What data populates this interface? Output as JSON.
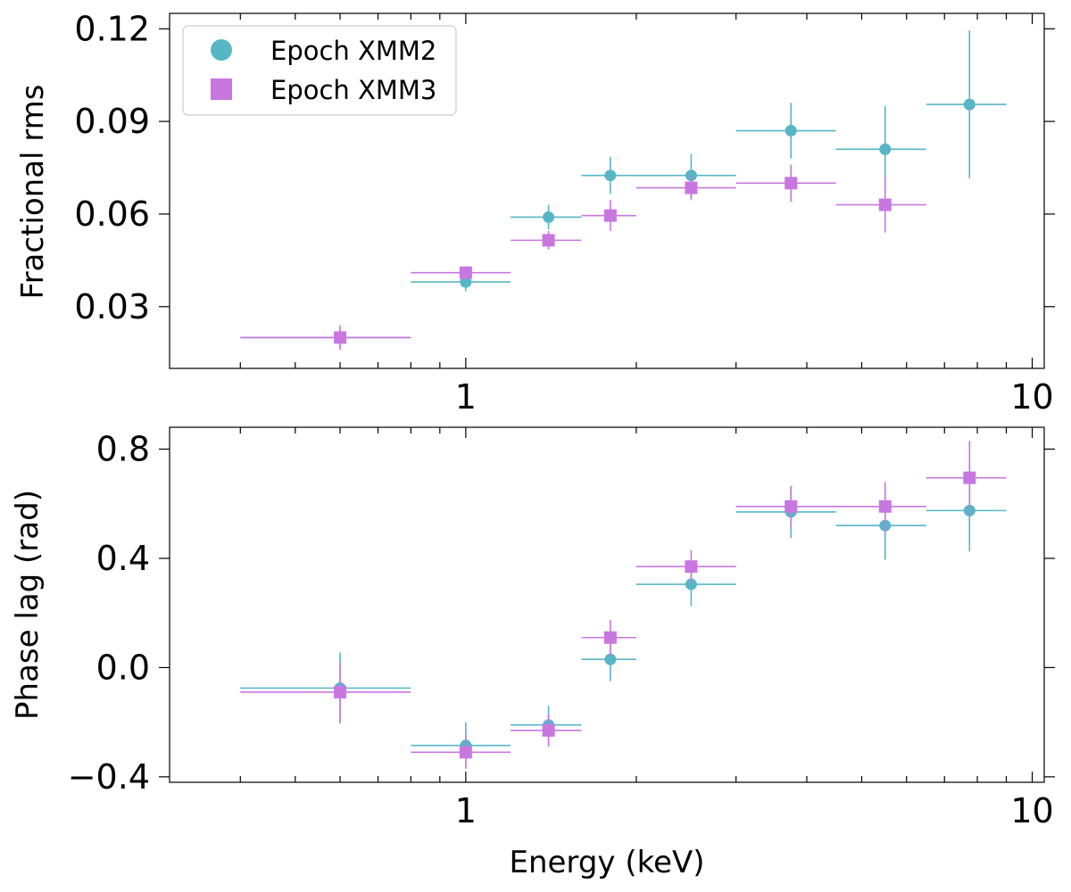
{
  "colors": {
    "xmm2": "#56b6c6",
    "xmm3": "#c877e0"
  },
  "chart_data": [
    {
      "type": "scatter",
      "panel": "top",
      "xlabel": "Energy (keV)",
      "ylabel": "Fractional rms",
      "xscale": "log",
      "xlim": [
        0.3,
        10.5
      ],
      "ylim": [
        0.01,
        0.125
      ],
      "yticks": [
        0.03,
        0.06,
        0.09,
        0.12
      ],
      "ytick_labels": [
        "0.03",
        "0.06",
        "0.09",
        "0.12"
      ],
      "xticks": [
        1,
        10
      ],
      "xtick_labels": [
        "1",
        "10"
      ],
      "legend": {
        "position": "top-left",
        "entries": [
          "Epoch XMM2",
          "Epoch XMM3"
        ]
      },
      "series": [
        {
          "name": "Epoch XMM2",
          "marker": "circle",
          "points": [
            {
              "x": 0.6,
              "xlo": 0.4,
              "xhi": 0.8,
              "y": 0.02,
              "yerr": 0.003
            },
            {
              "x": 1.0,
              "xlo": 0.8,
              "xhi": 1.2,
              "y": 0.038,
              "yerr": 0.003
            },
            {
              "x": 1.4,
              "xlo": 1.2,
              "xhi": 1.6,
              "y": 0.059,
              "yerr": 0.004
            },
            {
              "x": 1.8,
              "xlo": 1.6,
              "xhi": 2.0,
              "y": 0.0725,
              "yerr": 0.006
            },
            {
              "x": 2.5,
              "xlo": 2.0,
              "xhi": 3.0,
              "y": 0.0725,
              "yerr": 0.007
            },
            {
              "x": 3.75,
              "xlo": 3.0,
              "xhi": 4.5,
              "y": 0.087,
              "yerr": 0.009
            },
            {
              "x": 5.5,
              "xlo": 4.5,
              "xhi": 6.5,
              "y": 0.081,
              "yerr": 0.014
            },
            {
              "x": 7.75,
              "xlo": 6.5,
              "xhi": 9.0,
              "y": 0.0955,
              "yerr": 0.024
            }
          ]
        },
        {
          "name": "Epoch XMM3",
          "marker": "square",
          "points": [
            {
              "x": 0.6,
              "xlo": 0.4,
              "xhi": 0.8,
              "y": 0.02,
              "yerr": 0.004
            },
            {
              "x": 1.0,
              "xlo": 0.8,
              "xhi": 1.2,
              "y": 0.041,
              "yerr": 0.002
            },
            {
              "x": 1.4,
              "xlo": 1.2,
              "xhi": 1.6,
              "y": 0.0515,
              "yerr": 0.003
            },
            {
              "x": 1.8,
              "xlo": 1.6,
              "xhi": 2.0,
              "y": 0.0595,
              "yerr": 0.005
            },
            {
              "x": 2.5,
              "xlo": 2.0,
              "xhi": 3.0,
              "y": 0.0685,
              "yerr": 0.004
            },
            {
              "x": 3.75,
              "xlo": 3.0,
              "xhi": 4.5,
              "y": 0.07,
              "yerr": 0.006
            },
            {
              "x": 5.5,
              "xlo": 4.5,
              "xhi": 6.5,
              "y": 0.063,
              "yerr": 0.009
            }
          ]
        }
      ]
    },
    {
      "type": "scatter",
      "panel": "bottom",
      "xlabel": "Energy (keV)",
      "ylabel": "Phase lag (rad)",
      "xscale": "log",
      "xlim": [
        0.3,
        10.5
      ],
      "ylim": [
        -0.42,
        0.88
      ],
      "yticks": [
        -0.4,
        0.0,
        0.4,
        0.8
      ],
      "ytick_labels": [
        "−0.4",
        "0.0",
        "0.4",
        "0.8"
      ],
      "xticks": [
        1,
        10
      ],
      "xtick_labels": [
        "1",
        "10"
      ],
      "series": [
        {
          "name": "Epoch XMM2",
          "marker": "circle",
          "points": [
            {
              "x": 0.6,
              "xlo": 0.4,
              "xhi": 0.8,
              "y": -0.075,
              "yerr": 0.13
            },
            {
              "x": 1.0,
              "xlo": 0.8,
              "xhi": 1.2,
              "y": -0.285,
              "yerr": 0.085
            },
            {
              "x": 1.4,
              "xlo": 1.2,
              "xhi": 1.6,
              "y": -0.21,
              "yerr": 0.07
            },
            {
              "x": 1.8,
              "xlo": 1.6,
              "xhi": 2.0,
              "y": 0.03,
              "yerr": 0.08
            },
            {
              "x": 2.5,
              "xlo": 2.0,
              "xhi": 3.0,
              "y": 0.305,
              "yerr": 0.08
            },
            {
              "x": 3.75,
              "xlo": 3.0,
              "xhi": 4.5,
              "y": 0.57,
              "yerr": 0.095
            },
            {
              "x": 5.5,
              "xlo": 4.5,
              "xhi": 6.5,
              "y": 0.52,
              "yerr": 0.125
            },
            {
              "x": 7.75,
              "xlo": 6.5,
              "xhi": 9.0,
              "y": 0.575,
              "yerr": 0.15
            }
          ]
        },
        {
          "name": "Epoch XMM3",
          "marker": "square",
          "points": [
            {
              "x": 0.6,
              "xlo": 0.4,
              "xhi": 0.8,
              "y": -0.09,
              "yerr": 0.11
            },
            {
              "x": 1.0,
              "xlo": 0.8,
              "xhi": 1.2,
              "y": -0.31,
              "yerr": 0.06
            },
            {
              "x": 1.4,
              "xlo": 1.2,
              "xhi": 1.6,
              "y": -0.23,
              "yerr": 0.06
            },
            {
              "x": 1.8,
              "xlo": 1.6,
              "xhi": 2.0,
              "y": 0.11,
              "yerr": 0.065
            },
            {
              "x": 2.5,
              "xlo": 2.0,
              "xhi": 3.0,
              "y": 0.37,
              "yerr": 0.06
            },
            {
              "x": 3.75,
              "xlo": 3.0,
              "xhi": 4.5,
              "y": 0.59,
              "yerr": 0.075
            },
            {
              "x": 5.5,
              "xlo": 4.5,
              "xhi": 6.5,
              "y": 0.59,
              "yerr": 0.09
            },
            {
              "x": 7.75,
              "xlo": 6.5,
              "xhi": 9.0,
              "y": 0.695,
              "yerr": 0.135
            }
          ]
        }
      ]
    }
  ]
}
